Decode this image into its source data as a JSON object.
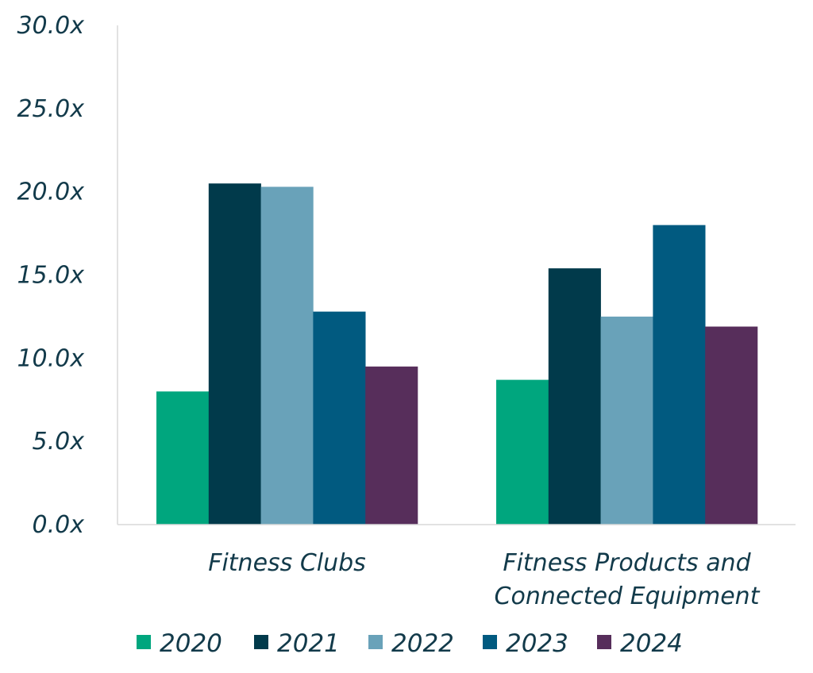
{
  "chart_data": {
    "type": "bar",
    "categories": [
      [
        "Fitness Clubs"
      ],
      [
        "Fitness Products and",
        "Connected Equipment"
      ]
    ],
    "series": [
      {
        "name": "2020",
        "color": "#00a67e",
        "values": [
          8.0,
          8.7
        ]
      },
      {
        "name": "2021",
        "color": "#013a4b",
        "values": [
          20.5,
          15.4
        ]
      },
      {
        "name": "2022",
        "color": "#69a2b9",
        "values": [
          20.3,
          12.5
        ]
      },
      {
        "name": "2023",
        "color": "#015a80",
        "values": [
          12.8,
          18.0
        ]
      },
      {
        "name": "2024",
        "color": "#572e5b",
        "values": [
          9.5,
          11.9
        ]
      }
    ],
    "ylim": [
      0,
      30
    ],
    "yticks": [
      "0.0x",
      "5.0x",
      "10.0x",
      "15.0x",
      "20.0x",
      "25.0x",
      "30.0x"
    ],
    "title": "",
    "xlabel": "",
    "ylabel": "",
    "grid": false,
    "legend_position": "bottom"
  }
}
